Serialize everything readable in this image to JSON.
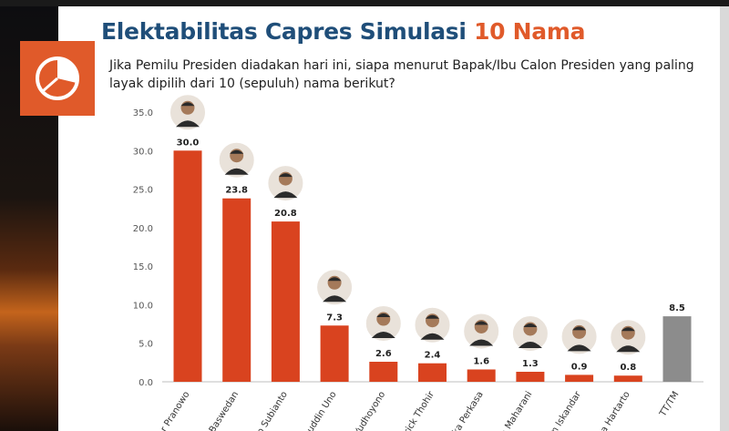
{
  "title_main": "Elektabilitas Capres Simulasi",
  "title_accent": "10 Nama",
  "question": "Jika Pemilu Presiden diadakan hari ini, siapa menurut Bapak/Ibu Calon Presiden yang paling layak dipilih dari 10 (sepuluh) nama berikut?",
  "colors": {
    "accent": "#e05a2a",
    "title": "#1f4e79",
    "bar": "#d9431f",
    "bar_other": "#8c8c8c"
  },
  "chart_data": {
    "type": "bar",
    "title": "Elektabilitas Capres Simulasi 10 Nama",
    "xlabel": "",
    "ylabel": "",
    "ylim": [
      0,
      35
    ],
    "yticks": [
      "0.0",
      "5.0",
      "10.0",
      "15.0",
      "20.0",
      "25.0",
      "30.0",
      "35.0"
    ],
    "grid": false,
    "categories": [
      "jar Pranowo",
      "nid Baswedan",
      "wo Subianto",
      "huddin Uno",
      "Yudhoyono",
      "Erick Thohir",
      "dika Perkasa",
      "n Maharani",
      "m Iskandar",
      "rga Hartarto",
      "TT/TM"
    ],
    "values": [
      30.0,
      23.8,
      20.8,
      7.3,
      2.6,
      2.4,
      1.6,
      1.3,
      0.9,
      0.8,
      8.5
    ],
    "value_labels": [
      "30.0",
      "23.8",
      "20.8",
      "7.3",
      "2.6",
      "2.4",
      "1.6",
      "1.3",
      "0.9",
      "0.8",
      "8.5"
    ],
    "has_photo": [
      true,
      true,
      true,
      true,
      true,
      true,
      true,
      true,
      true,
      true,
      false
    ]
  }
}
